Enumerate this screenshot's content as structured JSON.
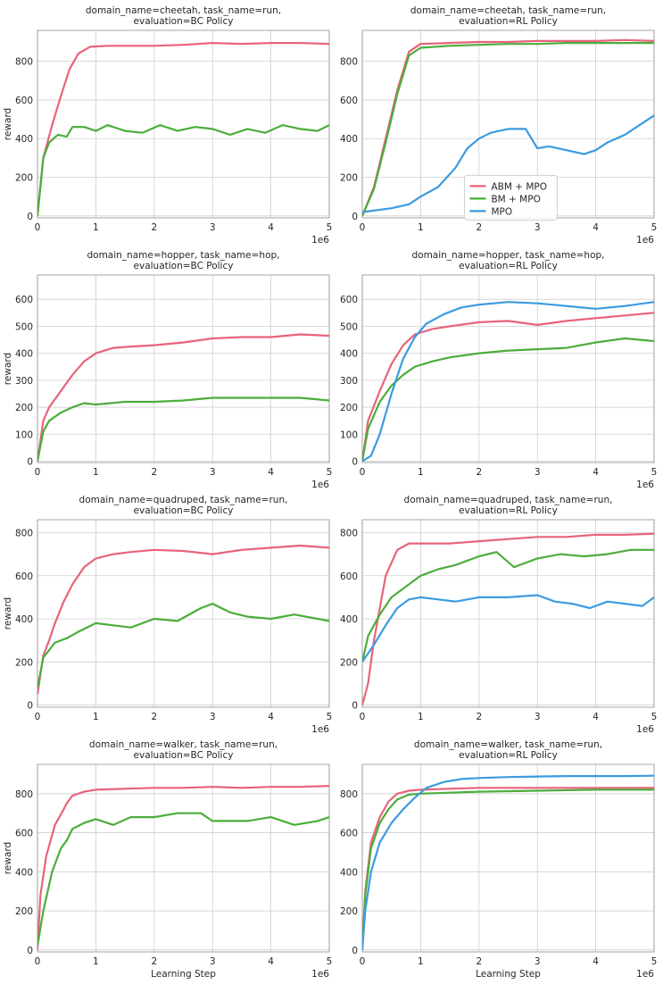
{
  "figure": {
    "legend_entries": [
      {
        "label": "ABM + MPO",
        "color": "#e8637a"
      },
      {
        "label": "BM + MPO",
        "color": "#4cad3c"
      },
      {
        "label": "MPO",
        "color": "#3b9be0"
      }
    ],
    "x_label": "Learning Step",
    "y_label": "reward",
    "x_scale_label": "1e6"
  },
  "chart_data": [
    {
      "type": "line",
      "title_lines": [
        "domain_name=cheetah, task_name=run,",
        "evaluation=BC Policy"
      ],
      "xlim": [
        0,
        5
      ],
      "ylim": [
        -10,
        960
      ],
      "xticks": [
        0,
        1,
        2,
        3,
        4,
        5
      ],
      "yticks": [
        0,
        200,
        400,
        600,
        800
      ],
      "ylabel": "reward",
      "xlabel": "",
      "x_multiplier": "1e6",
      "legend": false,
      "grid": true,
      "series": [
        {
          "name": "ABM + MPO",
          "color": "#e8637a",
          "x": [
            0,
            0.1,
            0.25,
            0.4,
            0.55,
            0.7,
            0.9,
            1.2,
            1.6,
            2.0,
            2.5,
            3.0,
            3.5,
            4.0,
            4.5,
            5.0
          ],
          "y": [
            0,
            300,
            470,
            620,
            760,
            840,
            875,
            880,
            880,
            880,
            885,
            895,
            890,
            895,
            895,
            890
          ]
        },
        {
          "name": "BM + MPO",
          "color": "#4cad3c",
          "x": [
            0,
            0.1,
            0.2,
            0.35,
            0.5,
            0.6,
            0.8,
            1.0,
            1.2,
            1.5,
            1.8,
            2.1,
            2.4,
            2.7,
            3.0,
            3.3,
            3.6,
            3.9,
            4.2,
            4.5,
            4.8,
            5.0
          ],
          "y": [
            0,
            300,
            380,
            420,
            410,
            460,
            460,
            440,
            470,
            440,
            430,
            470,
            440,
            460,
            450,
            420,
            450,
            430,
            470,
            450,
            440,
            470
          ]
        }
      ]
    },
    {
      "type": "line",
      "title_lines": [
        "domain_name=cheetah, task_name=run,",
        "evaluation=RL Policy"
      ],
      "xlim": [
        0,
        5
      ],
      "ylim": [
        -10,
        960
      ],
      "xticks": [
        0,
        1,
        2,
        3,
        4,
        5
      ],
      "yticks": [
        0,
        200,
        400,
        600,
        800
      ],
      "ylabel": "",
      "xlabel": "",
      "x_multiplier": "1e6",
      "legend": true,
      "legend_position": "center-right",
      "grid": true,
      "series": [
        {
          "name": "ABM + MPO",
          "color": "#e8637a",
          "x": [
            0,
            0.2,
            0.4,
            0.6,
            0.8,
            1.0,
            1.5,
            2.0,
            2.5,
            3.0,
            3.5,
            4.0,
            4.5,
            5.0
          ],
          "y": [
            0,
            150,
            400,
            650,
            850,
            890,
            895,
            900,
            900,
            905,
            905,
            905,
            910,
            905
          ]
        },
        {
          "name": "BM + MPO",
          "color": "#4cad3c",
          "x": [
            0,
            0.2,
            0.4,
            0.6,
            0.8,
            1.0,
            1.5,
            2.0,
            2.5,
            3.0,
            3.5,
            4.0,
            4.5,
            5.0
          ],
          "y": [
            0,
            140,
            380,
            630,
            830,
            870,
            880,
            885,
            890,
            890,
            895,
            895,
            895,
            895
          ]
        },
        {
          "name": "MPO",
          "color": "#3b9be0",
          "x": [
            0,
            0.5,
            0.8,
            1.0,
            1.3,
            1.6,
            1.8,
            2.0,
            2.2,
            2.5,
            2.8,
            3.0,
            3.2,
            3.5,
            3.8,
            4.0,
            4.2,
            4.5,
            4.8,
            5.0
          ],
          "y": [
            20,
            40,
            60,
            100,
            150,
            250,
            350,
            400,
            430,
            450,
            450,
            350,
            360,
            340,
            320,
            340,
            380,
            420,
            480,
            520
          ]
        }
      ]
    },
    {
      "type": "line",
      "title_lines": [
        "domain_name=hopper, task_name=hop,",
        "evaluation=BC Policy"
      ],
      "xlim": [
        0,
        5
      ],
      "ylim": [
        -5,
        690
      ],
      "xticks": [
        0,
        1,
        2,
        3,
        4,
        5
      ],
      "yticks": [
        0,
        100,
        200,
        300,
        400,
        500,
        600
      ],
      "ylabel": "reward",
      "xlabel": "",
      "x_multiplier": "1e6",
      "legend": false,
      "grid": true,
      "series": [
        {
          "name": "ABM + MPO",
          "color": "#e8637a",
          "x": [
            0,
            0.1,
            0.2,
            0.4,
            0.6,
            0.8,
            1.0,
            1.3,
            1.6,
            2.0,
            2.5,
            3.0,
            3.5,
            4.0,
            4.5,
            5.0
          ],
          "y": [
            0,
            150,
            200,
            260,
            320,
            370,
            400,
            420,
            425,
            430,
            440,
            455,
            460,
            460,
            470,
            465
          ]
        },
        {
          "name": "BM + MPO",
          "color": "#4cad3c",
          "x": [
            0,
            0.1,
            0.2,
            0.4,
            0.6,
            0.8,
            1.0,
            1.5,
            2.0,
            2.5,
            3.0,
            3.5,
            4.0,
            4.5,
            5.0
          ],
          "y": [
            0,
            110,
            150,
            180,
            200,
            215,
            210,
            220,
            220,
            225,
            235,
            235,
            235,
            235,
            225
          ]
        }
      ]
    },
    {
      "type": "line",
      "title_lines": [
        "domain_name=hopper, task_name=hop,",
        "evaluation=RL Policy"
      ],
      "xlim": [
        0,
        5
      ],
      "ylim": [
        -5,
        690
      ],
      "xticks": [
        0,
        1,
        2,
        3,
        4,
        5
      ],
      "yticks": [
        0,
        100,
        200,
        300,
        400,
        500,
        600
      ],
      "ylabel": "",
      "xlabel": "",
      "x_multiplier": "1e6",
      "legend": false,
      "grid": true,
      "series": [
        {
          "name": "ABM + MPO",
          "color": "#e8637a",
          "x": [
            0,
            0.1,
            0.3,
            0.5,
            0.7,
            0.9,
            1.2,
            1.5,
            2.0,
            2.5,
            3.0,
            3.5,
            4.0,
            4.5,
            5.0
          ],
          "y": [
            0,
            150,
            260,
            360,
            430,
            470,
            490,
            500,
            515,
            520,
            505,
            520,
            530,
            540,
            550
          ]
        },
        {
          "name": "BM + MPO",
          "color": "#4cad3c",
          "x": [
            0,
            0.1,
            0.3,
            0.5,
            0.7,
            0.9,
            1.2,
            1.5,
            2.0,
            2.5,
            3.0,
            3.5,
            4.0,
            4.5,
            5.0
          ],
          "y": [
            0,
            120,
            220,
            280,
            320,
            350,
            370,
            385,
            400,
            410,
            415,
            420,
            440,
            455,
            445
          ]
        },
        {
          "name": "MPO",
          "color": "#3b9be0",
          "x": [
            0,
            0.15,
            0.3,
            0.5,
            0.7,
            0.9,
            1.1,
            1.4,
            1.7,
            2.0,
            2.5,
            3.0,
            3.5,
            4.0,
            4.5,
            5.0
          ],
          "y": [
            0,
            20,
            100,
            250,
            380,
            460,
            510,
            545,
            570,
            580,
            590,
            585,
            575,
            565,
            575,
            590
          ]
        }
      ]
    },
    {
      "type": "line",
      "title_lines": [
        "domain_name=quadruped, task_name=run,",
        "evaluation=BC Policy"
      ],
      "xlim": [
        0,
        5
      ],
      "ylim": [
        -10,
        860
      ],
      "xticks": [
        0,
        1,
        2,
        3,
        4,
        5
      ],
      "yticks": [
        0,
        200,
        400,
        600,
        800
      ],
      "ylabel": "reward",
      "xlabel": "",
      "x_multiplier": "1e6",
      "legend": false,
      "grid": true,
      "series": [
        {
          "name": "ABM + MPO",
          "color": "#e8637a",
          "x": [
            0,
            0.1,
            0.2,
            0.3,
            0.45,
            0.6,
            0.8,
            1.0,
            1.3,
            1.6,
            2.0,
            2.5,
            3.0,
            3.5,
            4.0,
            4.5,
            5.0
          ],
          "y": [
            50,
            230,
            300,
            380,
            480,
            560,
            640,
            680,
            700,
            710,
            720,
            715,
            700,
            720,
            730,
            740,
            730
          ]
        },
        {
          "name": "BM + MPO",
          "color": "#4cad3c",
          "x": [
            0,
            0.1,
            0.3,
            0.5,
            0.7,
            1.0,
            1.3,
            1.6,
            2.0,
            2.4,
            2.8,
            3.0,
            3.3,
            3.6,
            4.0,
            4.4,
            4.8,
            5.0
          ],
          "y": [
            80,
            220,
            290,
            310,
            340,
            380,
            370,
            360,
            400,
            390,
            450,
            470,
            430,
            410,
            400,
            420,
            400,
            390
          ]
        }
      ]
    },
    {
      "type": "line",
      "title_lines": [
        "domain_name=quadruped, task_name=run,",
        "evaluation=RL Policy"
      ],
      "xlim": [
        0,
        5
      ],
      "ylim": [
        -10,
        860
      ],
      "xticks": [
        0,
        1,
        2,
        3,
        4,
        5
      ],
      "yticks": [
        0,
        200,
        400,
        600,
        800
      ],
      "ylabel": "",
      "xlabel": "",
      "x_multiplier": "1e6",
      "legend": false,
      "grid": true,
      "series": [
        {
          "name": "ABM + MPO",
          "color": "#e8637a",
          "x": [
            0,
            0.1,
            0.2,
            0.4,
            0.6,
            0.8,
            1.0,
            1.5,
            2.0,
            2.5,
            3.0,
            3.5,
            4.0,
            4.5,
            5.0
          ],
          "y": [
            0,
            100,
            300,
            600,
            720,
            750,
            750,
            750,
            760,
            770,
            780,
            780,
            790,
            790,
            795
          ]
        },
        {
          "name": "BM + MPO",
          "color": "#4cad3c",
          "x": [
            0,
            0.1,
            0.3,
            0.5,
            0.8,
            1.0,
            1.3,
            1.6,
            2.0,
            2.3,
            2.6,
            3.0,
            3.4,
            3.8,
            4.2,
            4.6,
            5.0
          ],
          "y": [
            200,
            320,
            420,
            500,
            560,
            600,
            630,
            650,
            690,
            710,
            640,
            680,
            700,
            690,
            700,
            720,
            720
          ]
        },
        {
          "name": "MPO",
          "color": "#3b9be0",
          "x": [
            0,
            0.2,
            0.4,
            0.6,
            0.8,
            1.0,
            1.3,
            1.6,
            2.0,
            2.5,
            3.0,
            3.3,
            3.6,
            3.9,
            4.2,
            4.5,
            4.8,
            5.0
          ],
          "y": [
            200,
            280,
            370,
            450,
            490,
            500,
            490,
            480,
            500,
            500,
            510,
            480,
            470,
            450,
            480,
            470,
            460,
            500
          ]
        }
      ]
    },
    {
      "type": "line",
      "title_lines": [
        "domain_name=walker, task_name=run,",
        "evaluation=BC Policy"
      ],
      "xlim": [
        0,
        5
      ],
      "ylim": [
        -10,
        950
      ],
      "xticks": [
        0,
        1,
        2,
        3,
        4,
        5
      ],
      "yticks": [
        0,
        200,
        400,
        600,
        800
      ],
      "ylabel": "reward",
      "xlabel": "Learning Step",
      "x_multiplier": "1e6",
      "legend": false,
      "grid": true,
      "series": [
        {
          "name": "ABM + MPO",
          "color": "#e8637a",
          "x": [
            0,
            0.05,
            0.15,
            0.3,
            0.45,
            0.5,
            0.6,
            0.8,
            1.0,
            1.5,
            2.0,
            2.5,
            3.0,
            3.5,
            4.0,
            4.5,
            5.0
          ],
          "y": [
            0,
            280,
            480,
            640,
            720,
            750,
            790,
            810,
            820,
            825,
            830,
            830,
            835,
            830,
            835,
            835,
            840
          ]
        },
        {
          "name": "BM + MPO",
          "color": "#4cad3c",
          "x": [
            0,
            0.1,
            0.25,
            0.4,
            0.5,
            0.6,
            0.8,
            1.0,
            1.3,
            1.6,
            2.0,
            2.4,
            2.8,
            3.0,
            3.3,
            3.6,
            4.0,
            4.4,
            4.8,
            5.0
          ],
          "y": [
            20,
            200,
            400,
            520,
            560,
            620,
            650,
            670,
            640,
            680,
            680,
            700,
            700,
            660,
            660,
            660,
            680,
            640,
            660,
            680
          ]
        }
      ]
    },
    {
      "type": "line",
      "title_lines": [
        "domain_name=walker, task_name=run,",
        "evaluation=RL Policy"
      ],
      "xlim": [
        0,
        5
      ],
      "ylim": [
        -10,
        950
      ],
      "xticks": [
        0,
        1,
        2,
        3,
        4,
        5
      ],
      "yticks": [
        0,
        200,
        400,
        600,
        800
      ],
      "ylabel": "",
      "xlabel": "Learning Step",
      "x_multiplier": "1e6",
      "legend": false,
      "grid": true,
      "series": [
        {
          "name": "ABM + MPO",
          "color": "#e8637a",
          "x": [
            0,
            0.05,
            0.15,
            0.3,
            0.45,
            0.6,
            0.8,
            1.0,
            1.5,
            2.0,
            3.0,
            4.0,
            5.0
          ],
          "y": [
            0,
            300,
            550,
            680,
            760,
            800,
            815,
            820,
            825,
            830,
            830,
            830,
            830
          ]
        },
        {
          "name": "BM + MPO",
          "color": "#4cad3c",
          "x": [
            0,
            0.05,
            0.15,
            0.3,
            0.45,
            0.6,
            0.8,
            1.0,
            1.5,
            2.0,
            3.0,
            4.0,
            5.0
          ],
          "y": [
            0,
            280,
            520,
            650,
            720,
            770,
            795,
            800,
            805,
            810,
            815,
            820,
            820
          ]
        },
        {
          "name": "MPO",
          "color": "#3b9be0",
          "x": [
            0,
            0.05,
            0.15,
            0.3,
            0.5,
            0.7,
            0.9,
            1.1,
            1.4,
            1.7,
            2.0,
            2.5,
            3.0,
            3.5,
            4.0,
            4.5,
            5.0
          ],
          "y": [
            0,
            200,
            400,
            550,
            650,
            720,
            780,
            830,
            860,
            875,
            880,
            885,
            888,
            890,
            890,
            890,
            892
          ]
        }
      ]
    }
  ]
}
